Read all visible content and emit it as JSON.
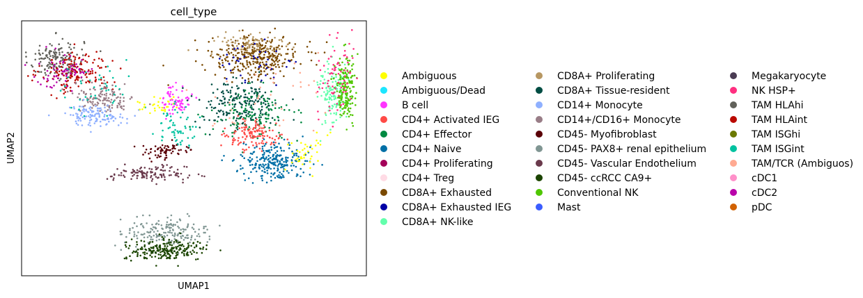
{
  "chart_data": {
    "type": "scatter",
    "title": "cell_type",
    "xlabel": "UMAP1",
    "ylabel": "UMAP2",
    "ticks": "none",
    "xlim": [
      0,
      100
    ],
    "ylim": [
      0,
      100
    ],
    "legend_position": "right",
    "legend_columns": 3,
    "categories": [
      {
        "name": "Ambiguous",
        "color": "#ffff00"
      },
      {
        "name": "Ambiguous/Dead",
        "color": "#1ce6ff"
      },
      {
        "name": "B cell",
        "color": "#ff34ff"
      },
      {
        "name": "CD4+ Activated IEG",
        "color": "#ff4a46"
      },
      {
        "name": "CD4+ Effector",
        "color": "#008941"
      },
      {
        "name": "CD4+ Naive",
        "color": "#006fa6"
      },
      {
        "name": "CD4+ Proliferating",
        "color": "#a30059"
      },
      {
        "name": "CD4+ Treg",
        "color": "#ffdbe5"
      },
      {
        "name": "CD8A+ Exhausted",
        "color": "#7a4900"
      },
      {
        "name": "CD8A+ Exhausted IEG",
        "color": "#0000a6"
      },
      {
        "name": "CD8A+ NK-like",
        "color": "#63ffac"
      },
      {
        "name": "CD8A+ Proliferating",
        "color": "#b79762"
      },
      {
        "name": "CD8A+ Tissue-resident",
        "color": "#004d43"
      },
      {
        "name": "CD14+ Monocyte",
        "color": "#8fb0ff"
      },
      {
        "name": "CD14+/CD16+ Monocyte",
        "color": "#997d87"
      },
      {
        "name": "CD45- Myofibroblast",
        "color": "#5a0007"
      },
      {
        "name": "CD45- PAX8+ renal epithelium",
        "color": "#809693"
      },
      {
        "name": "CD45- Vascular Endothelium",
        "color": "#6a3a4c"
      },
      {
        "name": "CD45- ccRCC CA9+",
        "color": "#1b4400"
      },
      {
        "name": "Conventional NK",
        "color": "#4fc601"
      },
      {
        "name": "Mast",
        "color": "#3b5dff"
      },
      {
        "name": "Megakaryocyte",
        "color": "#4a3b53"
      },
      {
        "name": "NK HSP+",
        "color": "#ff2f80"
      },
      {
        "name": "TAM HLAhi",
        "color": "#61615a"
      },
      {
        "name": "TAM HLAint",
        "color": "#ba0900"
      },
      {
        "name": "TAM ISGhi",
        "color": "#6b7900"
      },
      {
        "name": "TAM ISGint",
        "color": "#00c2a0"
      },
      {
        "name": "TAM/TCR (Ambiguos)",
        "color": "#ffaa92"
      },
      {
        "name": "cDC1",
        "color": "#ff90c9"
      },
      {
        "name": "cDC2",
        "color": "#b903aa"
      },
      {
        "name": "pDC",
        "color": "#d16100"
      }
    ],
    "clusters": [
      {
        "category": "TAM HLAhi",
        "cx": 10,
        "cy": 85,
        "rx": 8,
        "ry": 8,
        "n": 160
      },
      {
        "category": "TAM HLAint",
        "cx": 16,
        "cy": 80,
        "rx": 10,
        "ry": 8,
        "n": 150
      },
      {
        "category": "cDC2",
        "cx": 12,
        "cy": 80,
        "rx": 9,
        "ry": 7,
        "n": 70
      },
      {
        "category": "CD14+/CD16+ Monocyte",
        "cx": 24,
        "cy": 70,
        "rx": 9,
        "ry": 6,
        "n": 130
      },
      {
        "category": "CD14+ Monocyte",
        "cx": 21,
        "cy": 63,
        "rx": 9,
        "ry": 4,
        "n": 120
      },
      {
        "category": "TAM ISGint",
        "cx": 22,
        "cy": 72,
        "rx": 12,
        "ry": 10,
        "n": 40
      },
      {
        "category": "Ambiguous",
        "cx": 40,
        "cy": 67,
        "rx": 7,
        "ry": 4,
        "n": 30
      },
      {
        "category": "B cell",
        "cx": 45,
        "cy": 69,
        "rx": 4,
        "ry": 6,
        "n": 70
      },
      {
        "category": "TAM ISGint",
        "cx": 45,
        "cy": 58,
        "rx": 6,
        "ry": 8,
        "n": 60
      },
      {
        "category": "CD45- Myofibroblast",
        "cx": 42,
        "cy": 49,
        "rx": 9,
        "ry": 3,
        "n": 70
      },
      {
        "category": "CD45- Vascular Endothelium",
        "cx": 37,
        "cy": 40,
        "rx": 11,
        "ry": 3,
        "n": 120
      },
      {
        "category": "CD45- PAX8+ renal epithelium",
        "cx": 42,
        "cy": 17,
        "rx": 12,
        "ry": 6,
        "n": 180
      },
      {
        "category": "CD45- ccRCC CA9+",
        "cx": 42,
        "cy": 10,
        "rx": 12,
        "ry": 4,
        "n": 220
      },
      {
        "category": "CD8A+ Exhausted",
        "cx": 68,
        "cy": 86,
        "rx": 13,
        "ry": 8,
        "n": 330
      },
      {
        "category": "CD8A+ Proliferating",
        "cx": 66,
        "cy": 91,
        "rx": 11,
        "ry": 5,
        "n": 80
      },
      {
        "category": "CD8A+ Exhausted IEG",
        "cx": 68,
        "cy": 82,
        "rx": 12,
        "ry": 10,
        "n": 40
      },
      {
        "category": "CD8A+ Tissue-resident",
        "cx": 63,
        "cy": 67,
        "rx": 12,
        "ry": 10,
        "n": 200
      },
      {
        "category": "CD4+ Effector",
        "cx": 67,
        "cy": 63,
        "rx": 12,
        "ry": 9,
        "n": 130
      },
      {
        "category": "CD4+ Activated IEG",
        "cx": 68,
        "cy": 55,
        "rx": 8,
        "ry": 6,
        "n": 130
      },
      {
        "category": "CD4+ Naive",
        "cx": 73,
        "cy": 45,
        "rx": 9,
        "ry": 7,
        "n": 250
      },
      {
        "category": "Ambiguous",
        "cx": 83,
        "cy": 48,
        "rx": 6,
        "ry": 8,
        "n": 40
      },
      {
        "category": "CD8A+ NK-like",
        "cx": 90,
        "cy": 72,
        "rx": 4,
        "ry": 13,
        "n": 140
      },
      {
        "category": "Conventional NK",
        "cx": 94,
        "cy": 74,
        "rx": 3,
        "ry": 13,
        "n": 180
      },
      {
        "category": "NK HSP+",
        "cx": 91,
        "cy": 77,
        "rx": 5,
        "ry": 17,
        "n": 70
      },
      {
        "category": "TAM/TCR (Ambiguos)",
        "cx": 70,
        "cy": 70,
        "rx": 16,
        "ry": 16,
        "n": 40
      }
    ]
  }
}
